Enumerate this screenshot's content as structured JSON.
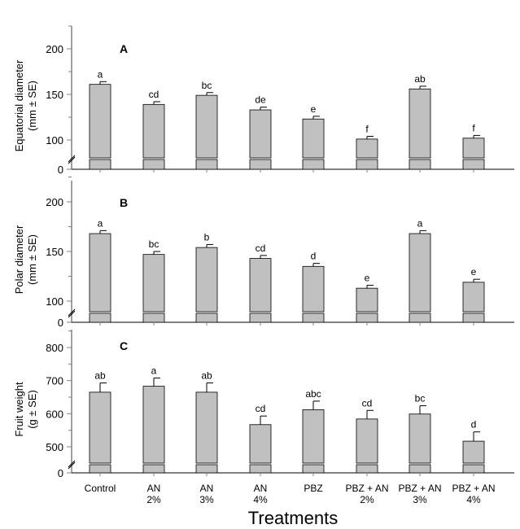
{
  "chart_data": [
    {
      "type": "bar",
      "panel_label": "A",
      "ylabel": [
        "Equatorial diameter",
        "(mm ± SE)"
      ],
      "yticks": [
        0,
        100,
        150,
        200
      ],
      "ylim": [
        0,
        225
      ],
      "axis_break": true,
      "categories": [
        "Control",
        "AN 2%",
        "AN 3%",
        "AN 4%",
        "PBZ",
        "PBZ + AN 2%",
        "PBZ + AN 3%",
        "PBZ + AN 4%"
      ],
      "values": [
        161,
        139,
        149,
        133,
        123,
        101,
        156,
        102
      ],
      "errors": [
        3,
        3,
        3,
        3,
        3,
        3,
        3,
        3
      ],
      "letters": [
        "a",
        "cd",
        "bc",
        "de",
        "e",
        "f",
        "ab",
        "f"
      ]
    },
    {
      "type": "bar",
      "panel_label": "B",
      "ylabel": [
        "Polar diameter",
        "(mm ± SE)"
      ],
      "yticks": [
        0,
        100,
        150,
        200
      ],
      "ylim": [
        0,
        225
      ],
      "axis_break": true,
      "categories": [
        "Control",
        "AN 2%",
        "AN 3%",
        "AN 4%",
        "PBZ",
        "PBZ + AN 2%",
        "PBZ + AN 3%",
        "PBZ + AN 4%"
      ],
      "values": [
        168,
        147,
        154,
        143,
        135,
        113,
        168,
        119
      ],
      "errors": [
        3,
        3,
        3,
        3,
        3,
        3,
        3,
        3
      ],
      "letters": [
        "a",
        "bc",
        "b",
        "cd",
        "d",
        "e",
        "a",
        "e"
      ]
    },
    {
      "type": "bar",
      "panel_label": "C",
      "ylabel": [
        "Fruit weight",
        "(g ± SE)"
      ],
      "yticks": [
        0,
        500,
        600,
        700,
        800
      ],
      "ylim": [
        0,
        850
      ],
      "axis_break": true,
      "categories": [
        "Control",
        "AN 2%",
        "AN 3%",
        "AN 4%",
        "PBZ",
        "PBZ + AN 2%",
        "PBZ + AN 3%",
        "PBZ + AN 4%"
      ],
      "values": [
        665,
        683,
        665,
        567,
        612,
        584,
        599,
        517
      ],
      "errors": [
        28,
        25,
        28,
        26,
        26,
        26,
        25,
        28
      ],
      "letters": [
        "ab",
        "a",
        "ab",
        "cd",
        "abc",
        "cd",
        "bc",
        "d"
      ]
    }
  ],
  "x_tick_labels": [
    [
      "Control"
    ],
    [
      "AN",
      "2%"
    ],
    [
      "AN",
      "3%"
    ],
    [
      "AN",
      "4%"
    ],
    [
      "PBZ"
    ],
    [
      "PBZ + AN",
      "2%"
    ],
    [
      "PBZ + AN",
      "3%"
    ],
    [
      "PBZ + AN",
      "4%"
    ]
  ],
  "xlabel": "Treatments",
  "colors": {
    "bar": "#c0c0c0",
    "axis": "#808080"
  }
}
